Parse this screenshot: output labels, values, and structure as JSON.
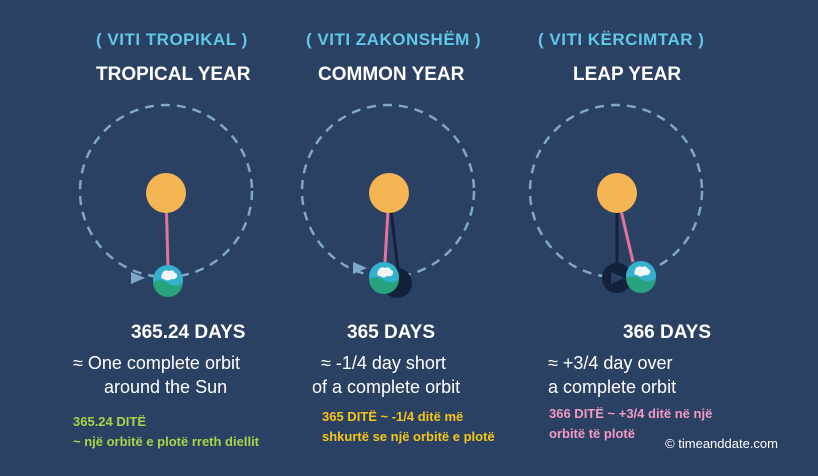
{
  "columns": [
    {
      "albanian_title": "( VITI TROPIKAL )",
      "english_title": "TROPICAL YEAR",
      "days": "365.24 DAYS",
      "desc_line1": "≈ One complete orbit",
      "desc_line2": "around the Sun",
      "note_line1": "365.24 DITË",
      "note_line2": "~ një orbitë e plotë rreth diellit",
      "note_color": "#a8d44a"
    },
    {
      "albanian_title": "( VITI ZAKONSHËM )",
      "english_title": "COMMON YEAR",
      "days": "365 DAYS",
      "desc_line1": "≈ -1/4 day short",
      "desc_line2": "of a complete orbit",
      "note_line1": "365 DITË ~ -1/4 ditë më",
      "note_line2": "shkurtë se një orbitë e plotë",
      "note_color": "#f5c518"
    },
    {
      "albanian_title": "( VITI KËRCIMTAR )",
      "english_title": "LEAP YEAR",
      "days": "366 DAYS",
      "desc_line1": "≈ +3/4 day over",
      "desc_line2": "a complete orbit",
      "note_line1": "366 DITË ~ +3/4 ditë në një",
      "note_line2": "orbitë të plotë",
      "note_color": "#f29ac4"
    }
  ],
  "credit": "© timeanddate.com",
  "colors": {
    "background": "#2b4163",
    "sun": "#f5b553",
    "orbit": "#7ea7c9",
    "pink_line": "#e2739d",
    "dark_line": "#13213a",
    "earth_ocean": "#34b1cf",
    "earth_land": "#27a47d",
    "earth_cloud": "#f3f6f8"
  }
}
